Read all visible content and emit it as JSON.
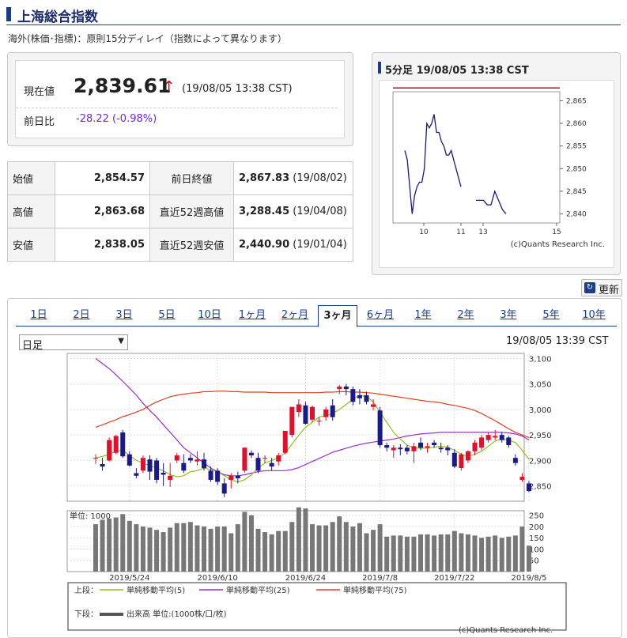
{
  "page_title": "上海総合指数",
  "delay_note": "海外(株価･指標)：原則15分ディレイ（指数によって異なります）",
  "current": {
    "label": "現在値",
    "value": "2,839.61",
    "arrow": "↑",
    "time": "(19/08/05 13:38 CST)",
    "change_label": "前日比",
    "change_value": "-28.22 (-0.98%)"
  },
  "stats": {
    "open_label": "始値",
    "open": "2,854.57",
    "prev_label": "前日終値",
    "prev": "2,867.83",
    "prev_date": "(19/08/02)",
    "high_label": "高値",
    "high": "2,863.68",
    "w52_high_label": "直近52週高値",
    "w52_high": "3,288.45",
    "w52_high_date": "(19/04/08)",
    "low_label": "安値",
    "low": "2,838.05",
    "w52_low_label": "直近52週安値",
    "w52_low": "2,440.90",
    "w52_low_date": "(19/01/04)"
  },
  "mini": {
    "title": "5分足 19/08/05 13:38 CST",
    "credit": "(c)Quants Research Inc.",
    "chart_data": {
      "type": "line",
      "x": [
        "9:35",
        "9:40",
        "9:45",
        "9:50",
        "9:55",
        "10:00",
        "10:05",
        "10:10",
        "10:15",
        "10:20",
        "10:25",
        "10:30",
        "10:35",
        "10:40",
        "10:45",
        "10:50",
        "10:55",
        "11:00",
        "11:05",
        "11:10",
        "11:15",
        "11:20",
        "11:25",
        "11:30",
        "13:00",
        "13:05",
        "13:10",
        "13:15",
        "13:20",
        "13:25",
        "13:30",
        "13:35",
        "13:38"
      ],
      "values": [
        2854,
        2852,
        2846,
        2840,
        2844,
        2846,
        2847,
        2847,
        2850,
        2860,
        2859,
        2860,
        2862,
        2858,
        2858,
        2856,
        2855,
        2853,
        2853,
        2854,
        2852,
        2850,
        2848,
        2846,
        2843,
        2843,
        2843,
        2842,
        2842,
        2845,
        2843,
        2841,
        2840
      ],
      "x_ticks": [
        "10",
        "11",
        "13",
        "15"
      ],
      "y_ticks": [
        2840,
        2845,
        2850,
        2855,
        2860,
        2865
      ],
      "ylim": [
        2838,
        2867
      ],
      "prev_close": 2867.83
    }
  },
  "refresh_label": "更新",
  "tabs": [
    "1日",
    "2日",
    "3日",
    "5日",
    "10日",
    "1ヶ月",
    "2ヶ月",
    "3ヶ月",
    "6ヶ月",
    "1年",
    "2年",
    "3年",
    "5年",
    "10年"
  ],
  "active_tab": "3ヶ月",
  "select_value": "日足",
  "main_time": "19/08/05 13:39 CST",
  "main_credit": "(c)Quants Research Inc.",
  "chart_data": {
    "type": "candlestick",
    "x_ticks": [
      "2019/5/24",
      "2019/6/10",
      "2019/6/24",
      "2019/7/8",
      "2019/7/22",
      "2019/8/5"
    ],
    "y_ticks": [
      2850,
      2900,
      2950,
      3000,
      3050,
      3100
    ],
    "ylim": [
      2820,
      3110
    ],
    "volume_label": "単位: 1000",
    "volume_ticks": [
      50,
      100,
      150,
      200,
      250
    ],
    "volume_ylim": [
      0,
      270
    ],
    "candles": [
      {
        "o": 2905,
        "h": 2912,
        "l": 2893,
        "c": 2905
      },
      {
        "o": 2893,
        "h": 2905,
        "l": 2880,
        "c": 2888
      },
      {
        "o": 2900,
        "h": 2945,
        "l": 2898,
        "c": 2940
      },
      {
        "o": 2915,
        "h": 2950,
        "l": 2912,
        "c": 2948
      },
      {
        "o": 2955,
        "h": 2960,
        "l": 2905,
        "c": 2908
      },
      {
        "o": 2912,
        "h": 2918,
        "l": 2888,
        "c": 2890
      },
      {
        "o": 2875,
        "h": 2885,
        "l": 2865,
        "c": 2870
      },
      {
        "o": 2880,
        "h": 2910,
        "l": 2875,
        "c": 2905
      },
      {
        "o": 2902,
        "h": 2910,
        "l": 2862,
        "c": 2878
      },
      {
        "o": 2900,
        "h": 2905,
        "l": 2855,
        "c": 2862
      },
      {
        "o": 2876,
        "h": 2895,
        "l": 2850,
        "c": 2872
      },
      {
        "o": 2862,
        "h": 2895,
        "l": 2848,
        "c": 2870
      },
      {
        "o": 2900,
        "h": 2915,
        "l": 2895,
        "c": 2910
      },
      {
        "o": 2895,
        "h": 2912,
        "l": 2875,
        "c": 2880
      },
      {
        "o": 2905,
        "h": 2912,
        "l": 2895,
        "c": 2900
      },
      {
        "o": 2898,
        "h": 2918,
        "l": 2890,
        "c": 2902
      },
      {
        "o": 2902,
        "h": 2915,
        "l": 2880,
        "c": 2885
      },
      {
        "o": 2880,
        "h": 2888,
        "l": 2858,
        "c": 2862
      },
      {
        "o": 2880,
        "h": 2885,
        "l": 2852,
        "c": 2858
      },
      {
        "o": 2855,
        "h": 2865,
        "l": 2828,
        "c": 2835
      },
      {
        "o": 2862,
        "h": 2875,
        "l": 2845,
        "c": 2870
      },
      {
        "o": 2870,
        "h": 2878,
        "l": 2855,
        "c": 2865
      },
      {
        "o": 2880,
        "h": 2925,
        "l": 2876,
        "c": 2925
      },
      {
        "o": 2915,
        "h": 2920,
        "l": 2905,
        "c": 2910
      },
      {
        "o": 2905,
        "h": 2915,
        "l": 2875,
        "c": 2880
      },
      {
        "o": 2905,
        "h": 2910,
        "l": 2895,
        "c": 2905
      },
      {
        "o": 2895,
        "h": 2905,
        "l": 2880,
        "c": 2888
      },
      {
        "o": 2898,
        "h": 2915,
        "l": 2890,
        "c": 2910
      },
      {
        "o": 2915,
        "h": 2958,
        "l": 2912,
        "c": 2958
      },
      {
        "o": 2950,
        "h": 3005,
        "l": 2945,
        "c": 3005
      },
      {
        "o": 2995,
        "h": 3020,
        "l": 2985,
        "c": 3010
      },
      {
        "o": 3008,
        "h": 3015,
        "l": 2970,
        "c": 2972
      },
      {
        "o": 2980,
        "h": 3008,
        "l": 2975,
        "c": 3005
      },
      {
        "o": 2978,
        "h": 2985,
        "l": 2968,
        "c": 2978
      },
      {
        "o": 2985,
        "h": 3005,
        "l": 2978,
        "c": 3000
      },
      {
        "o": 3008,
        "h": 3020,
        "l": 2978,
        "c": 2985
      },
      {
        "o": 3040,
        "h": 3048,
        "l": 3030,
        "c": 3045
      },
      {
        "o": 3045,
        "h": 3050,
        "l": 3028,
        "c": 3040
      },
      {
        "o": 3040,
        "h": 3045,
        "l": 3008,
        "c": 3015
      },
      {
        "o": 3028,
        "h": 3040,
        "l": 3010,
        "c": 3022
      },
      {
        "o": 3028,
        "h": 3035,
        "l": 3010,
        "c": 3015
      },
      {
        "o": 3005,
        "h": 3020,
        "l": 2998,
        "c": 3010
      },
      {
        "o": 2998,
        "h": 3005,
        "l": 2925,
        "c": 2930
      },
      {
        "o": 2930,
        "h": 2935,
        "l": 2918,
        "c": 2925
      },
      {
        "o": 2920,
        "h": 2930,
        "l": 2905,
        "c": 2925
      },
      {
        "o": 2925,
        "h": 2932,
        "l": 2910,
        "c": 2922
      },
      {
        "o": 2925,
        "h": 2930,
        "l": 2912,
        "c": 2918
      },
      {
        "o": 2918,
        "h": 2935,
        "l": 2895,
        "c": 2928
      },
      {
        "o": 2935,
        "h": 2945,
        "l": 2920,
        "c": 2925
      },
      {
        "o": 2925,
        "h": 2935,
        "l": 2915,
        "c": 2928
      },
      {
        "o": 2935,
        "h": 2940,
        "l": 2925,
        "c": 2930
      },
      {
        "o": 2925,
        "h": 2935,
        "l": 2915,
        "c": 2922
      },
      {
        "o": 2925,
        "h": 2930,
        "l": 2910,
        "c": 2920
      },
      {
        "o": 2915,
        "h": 2922,
        "l": 2885,
        "c": 2888
      },
      {
        "o": 2885,
        "h": 2915,
        "l": 2880,
        "c": 2912
      },
      {
        "o": 2900,
        "h": 2920,
        "l": 2895,
        "c": 2918
      },
      {
        "o": 2918,
        "h": 2940,
        "l": 2910,
        "c": 2935
      },
      {
        "o": 2925,
        "h": 2950,
        "l": 2920,
        "c": 2945
      },
      {
        "o": 2940,
        "h": 2955,
        "l": 2935,
        "c": 2950
      },
      {
        "o": 2945,
        "h": 2960,
        "l": 2940,
        "c": 2948
      },
      {
        "o": 2950,
        "h": 2955,
        "l": 2935,
        "c": 2940
      },
      {
        "o": 2945,
        "h": 2948,
        "l": 2925,
        "c": 2930
      },
      {
        "o": 2905,
        "h": 2912,
        "l": 2890,
        "c": 2895
      },
      {
        "o": 2862,
        "h": 2875,
        "l": 2858,
        "c": 2868
      },
      {
        "o": 2855,
        "h": 2860,
        "l": 2838,
        "c": 2840
      }
    ],
    "volume": [
      210,
      230,
      235,
      240,
      255,
      225,
      210,
      200,
      195,
      185,
      175,
      195,
      215,
      215,
      220,
      205,
      200,
      190,
      200,
      200,
      170,
      210,
      265,
      250,
      190,
      175,
      165,
      180,
      180,
      220,
      285,
      280,
      210,
      205,
      205,
      220,
      245,
      220,
      200,
      215,
      170,
      185,
      210,
      155,
      160,
      160,
      155,
      155,
      165,
      165,
      160,
      165,
      165,
      180,
      170,
      165,
      160,
      150,
      155,
      160,
      150,
      155,
      160,
      200,
      115
    ],
    "legend_top_label": "上段：",
    "legend_bottom_label": "下段：",
    "series": [
      {
        "name": "単純移動平均(5)",
        "color": "#8dc21f"
      },
      {
        "name": "単純移動平均(25)",
        "color": "#9b2bd6"
      },
      {
        "name": "単純移動平均(75)",
        "color": "#e0401c"
      },
      {
        "name": "出来高 単位:(1000株/口/枚)",
        "color": "#555555"
      }
    ],
    "ma75": [
      2965,
      2970,
      2975,
      2980,
      2986,
      2990,
      2995,
      3000,
      3008,
      3015,
      3020,
      3025,
      3028,
      3030,
      3032,
      3033,
      3035,
      3035,
      3036,
      3036,
      3035,
      3035,
      3034,
      3034,
      3034,
      3034,
      3033,
      3033,
      3033,
      3033,
      3033,
      3033,
      3033,
      3033,
      3034,
      3034,
      3035,
      3035,
      3034,
      3034,
      3033,
      3032,
      3030,
      3028,
      3026,
      3024,
      3022,
      3020,
      3018,
      3016,
      3015,
      3013,
      3010,
      3008,
      3005,
      3002,
      2998,
      2992,
      2985,
      2978,
      2970,
      2962,
      2955,
      2950,
      2945
    ],
    "ma25": [
      3100,
      3090,
      3080,
      3068,
      3055,
      3042,
      3028,
      3012,
      2998,
      2985,
      2970,
      2955,
      2940,
      2925,
      2915,
      2905,
      2895,
      2885,
      2878,
      2872,
      2870,
      2870,
      2872,
      2875,
      2878,
      2880,
      2880,
      2880,
      2880,
      2882,
      2886,
      2892,
      2898,
      2904,
      2910,
      2916,
      2920,
      2924,
      2928,
      2931,
      2934,
      2936,
      2938,
      2940,
      2942,
      2945,
      2948,
      2950,
      2952,
      2953,
      2954,
      2955,
      2955,
      2955,
      2955,
      2955,
      2955,
      2955,
      2955,
      2955,
      2955,
      2954,
      2952,
      2948,
      2940
    ],
    "ma5": [
      2905,
      2908,
      2912,
      2918,
      2920,
      2910,
      2900,
      2895,
      2890,
      2885,
      2880,
      2872,
      2868,
      2870,
      2878,
      2880,
      2885,
      2882,
      2878,
      2870,
      2862,
      2858,
      2862,
      2872,
      2885,
      2895,
      2900,
      2905,
      2915,
      2932,
      2950,
      2965,
      2975,
      2985,
      2988,
      2992,
      3000,
      3010,
      3020,
      3028,
      3025,
      3015,
      2995,
      2975,
      2955,
      2942,
      2930,
      2925,
      2924,
      2924,
      2926,
      2928,
      2926,
      2920,
      2912,
      2908,
      2912,
      2918,
      2928,
      2938,
      2942,
      2940,
      2935,
      2920,
      2902
    ]
  }
}
